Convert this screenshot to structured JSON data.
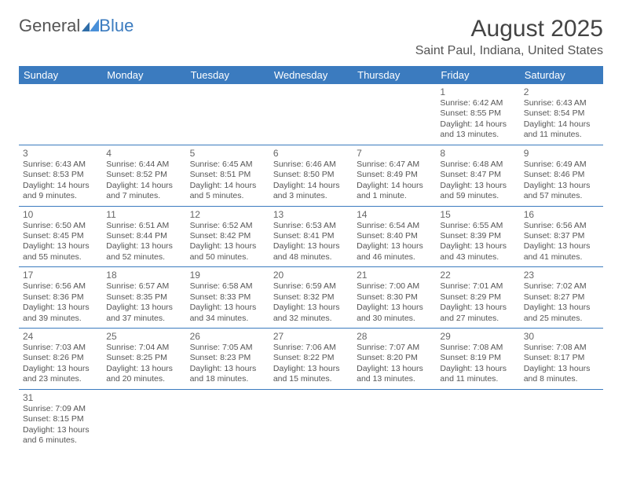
{
  "logo": {
    "text_general": "General",
    "text_blue": "Blue"
  },
  "title": "August 2025",
  "location": "Saint Paul, Indiana, United States",
  "colors": {
    "header_bg": "#3b7bbf",
    "header_fg": "#ffffff",
    "rule": "#3b7bbf",
    "text": "#555555"
  },
  "weekdays": [
    "Sunday",
    "Monday",
    "Tuesday",
    "Wednesday",
    "Thursday",
    "Friday",
    "Saturday"
  ],
  "weeks": [
    [
      null,
      null,
      null,
      null,
      null,
      {
        "n": "1",
        "sr": "Sunrise: 6:42 AM",
        "ss": "Sunset: 8:55 PM",
        "dl": "Daylight: 14 hours and 13 minutes."
      },
      {
        "n": "2",
        "sr": "Sunrise: 6:43 AM",
        "ss": "Sunset: 8:54 PM",
        "dl": "Daylight: 14 hours and 11 minutes."
      }
    ],
    [
      {
        "n": "3",
        "sr": "Sunrise: 6:43 AM",
        "ss": "Sunset: 8:53 PM",
        "dl": "Daylight: 14 hours and 9 minutes."
      },
      {
        "n": "4",
        "sr": "Sunrise: 6:44 AM",
        "ss": "Sunset: 8:52 PM",
        "dl": "Daylight: 14 hours and 7 minutes."
      },
      {
        "n": "5",
        "sr": "Sunrise: 6:45 AM",
        "ss": "Sunset: 8:51 PM",
        "dl": "Daylight: 14 hours and 5 minutes."
      },
      {
        "n": "6",
        "sr": "Sunrise: 6:46 AM",
        "ss": "Sunset: 8:50 PM",
        "dl": "Daylight: 14 hours and 3 minutes."
      },
      {
        "n": "7",
        "sr": "Sunrise: 6:47 AM",
        "ss": "Sunset: 8:49 PM",
        "dl": "Daylight: 14 hours and 1 minute."
      },
      {
        "n": "8",
        "sr": "Sunrise: 6:48 AM",
        "ss": "Sunset: 8:47 PM",
        "dl": "Daylight: 13 hours and 59 minutes."
      },
      {
        "n": "9",
        "sr": "Sunrise: 6:49 AM",
        "ss": "Sunset: 8:46 PM",
        "dl": "Daylight: 13 hours and 57 minutes."
      }
    ],
    [
      {
        "n": "10",
        "sr": "Sunrise: 6:50 AM",
        "ss": "Sunset: 8:45 PM",
        "dl": "Daylight: 13 hours and 55 minutes."
      },
      {
        "n": "11",
        "sr": "Sunrise: 6:51 AM",
        "ss": "Sunset: 8:44 PM",
        "dl": "Daylight: 13 hours and 52 minutes."
      },
      {
        "n": "12",
        "sr": "Sunrise: 6:52 AM",
        "ss": "Sunset: 8:42 PM",
        "dl": "Daylight: 13 hours and 50 minutes."
      },
      {
        "n": "13",
        "sr": "Sunrise: 6:53 AM",
        "ss": "Sunset: 8:41 PM",
        "dl": "Daylight: 13 hours and 48 minutes."
      },
      {
        "n": "14",
        "sr": "Sunrise: 6:54 AM",
        "ss": "Sunset: 8:40 PM",
        "dl": "Daylight: 13 hours and 46 minutes."
      },
      {
        "n": "15",
        "sr": "Sunrise: 6:55 AM",
        "ss": "Sunset: 8:39 PM",
        "dl": "Daylight: 13 hours and 43 minutes."
      },
      {
        "n": "16",
        "sr": "Sunrise: 6:56 AM",
        "ss": "Sunset: 8:37 PM",
        "dl": "Daylight: 13 hours and 41 minutes."
      }
    ],
    [
      {
        "n": "17",
        "sr": "Sunrise: 6:56 AM",
        "ss": "Sunset: 8:36 PM",
        "dl": "Daylight: 13 hours and 39 minutes."
      },
      {
        "n": "18",
        "sr": "Sunrise: 6:57 AM",
        "ss": "Sunset: 8:35 PM",
        "dl": "Daylight: 13 hours and 37 minutes."
      },
      {
        "n": "19",
        "sr": "Sunrise: 6:58 AM",
        "ss": "Sunset: 8:33 PM",
        "dl": "Daylight: 13 hours and 34 minutes."
      },
      {
        "n": "20",
        "sr": "Sunrise: 6:59 AM",
        "ss": "Sunset: 8:32 PM",
        "dl": "Daylight: 13 hours and 32 minutes."
      },
      {
        "n": "21",
        "sr": "Sunrise: 7:00 AM",
        "ss": "Sunset: 8:30 PM",
        "dl": "Daylight: 13 hours and 30 minutes."
      },
      {
        "n": "22",
        "sr": "Sunrise: 7:01 AM",
        "ss": "Sunset: 8:29 PM",
        "dl": "Daylight: 13 hours and 27 minutes."
      },
      {
        "n": "23",
        "sr": "Sunrise: 7:02 AM",
        "ss": "Sunset: 8:27 PM",
        "dl": "Daylight: 13 hours and 25 minutes."
      }
    ],
    [
      {
        "n": "24",
        "sr": "Sunrise: 7:03 AM",
        "ss": "Sunset: 8:26 PM",
        "dl": "Daylight: 13 hours and 23 minutes."
      },
      {
        "n": "25",
        "sr": "Sunrise: 7:04 AM",
        "ss": "Sunset: 8:25 PM",
        "dl": "Daylight: 13 hours and 20 minutes."
      },
      {
        "n": "26",
        "sr": "Sunrise: 7:05 AM",
        "ss": "Sunset: 8:23 PM",
        "dl": "Daylight: 13 hours and 18 minutes."
      },
      {
        "n": "27",
        "sr": "Sunrise: 7:06 AM",
        "ss": "Sunset: 8:22 PM",
        "dl": "Daylight: 13 hours and 15 minutes."
      },
      {
        "n": "28",
        "sr": "Sunrise: 7:07 AM",
        "ss": "Sunset: 8:20 PM",
        "dl": "Daylight: 13 hours and 13 minutes."
      },
      {
        "n": "29",
        "sr": "Sunrise: 7:08 AM",
        "ss": "Sunset: 8:19 PM",
        "dl": "Daylight: 13 hours and 11 minutes."
      },
      {
        "n": "30",
        "sr": "Sunrise: 7:08 AM",
        "ss": "Sunset: 8:17 PM",
        "dl": "Daylight: 13 hours and 8 minutes."
      }
    ],
    [
      {
        "n": "31",
        "sr": "Sunrise: 7:09 AM",
        "ss": "Sunset: 8:15 PM",
        "dl": "Daylight: 13 hours and 6 minutes."
      },
      null,
      null,
      null,
      null,
      null,
      null
    ]
  ]
}
